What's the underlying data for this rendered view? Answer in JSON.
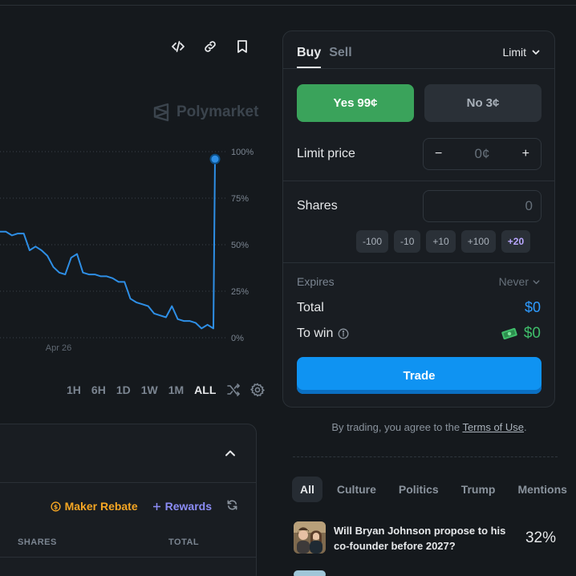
{
  "chart": {
    "watermark": "Polymarket",
    "y_tick_labels": [
      "100%",
      "75%",
      "50%",
      "25%",
      "0%"
    ],
    "x_tick_label": "Apr 26",
    "ranges": [
      "1H",
      "6H",
      "1D",
      "1W",
      "1M",
      "ALL"
    ],
    "active_range": "ALL",
    "line_color": "#2e8fe6"
  },
  "chart_data": {
    "type": "line",
    "title": "",
    "xlabel": "",
    "ylabel": "",
    "ylim": [
      0,
      100
    ],
    "x_ticks": [
      "Apr 26"
    ],
    "y_ticks": [
      "100%",
      "75%",
      "50%",
      "25%",
      "0%"
    ],
    "grid": true,
    "series": [
      {
        "values": [
          57,
          57,
          55,
          56,
          56,
          47,
          49,
          47,
          44,
          38,
          35,
          34,
          43,
          45,
          35,
          34,
          34,
          33,
          33,
          32,
          30,
          30,
          21,
          19,
          18,
          17,
          13,
          12,
          11,
          17,
          10,
          9,
          9,
          8,
          5,
          7,
          5,
          96
        ]
      }
    ]
  },
  "order_book": {
    "maker_rebate": "Maker Rebate",
    "rewards": "Rewards",
    "columns": [
      "SHARES",
      "TOTAL"
    ]
  },
  "trade": {
    "tab_buy": "Buy",
    "tab_sell": "Sell",
    "order_type": "Limit",
    "yes_label": "Yes",
    "yes_price": "99¢",
    "no_label": "No",
    "no_price": "3¢",
    "limit_price_label": "Limit price",
    "limit_price_value": "0¢",
    "shares_label": "Shares",
    "shares_value": "0",
    "quick_amounts": [
      "-100",
      "-10",
      "+10",
      "+100",
      "+20"
    ],
    "expires_label": "Expires",
    "expires_value": "Never",
    "total_label": "Total",
    "total_value": "$0",
    "to_win_label": "To win",
    "to_win_value": "$0",
    "trade_button": "Trade"
  },
  "terms": {
    "prefix": "By trading, you agree to the",
    "link": "Terms of Use",
    "suffix": "."
  },
  "categories": [
    "All",
    "Culture",
    "Politics",
    "Trump",
    "Mentions"
  ],
  "active_category": "All",
  "markets": [
    {
      "question": "Will Bryan Johnson propose to his co-founder before 2027?",
      "percent": "32%"
    }
  ]
}
